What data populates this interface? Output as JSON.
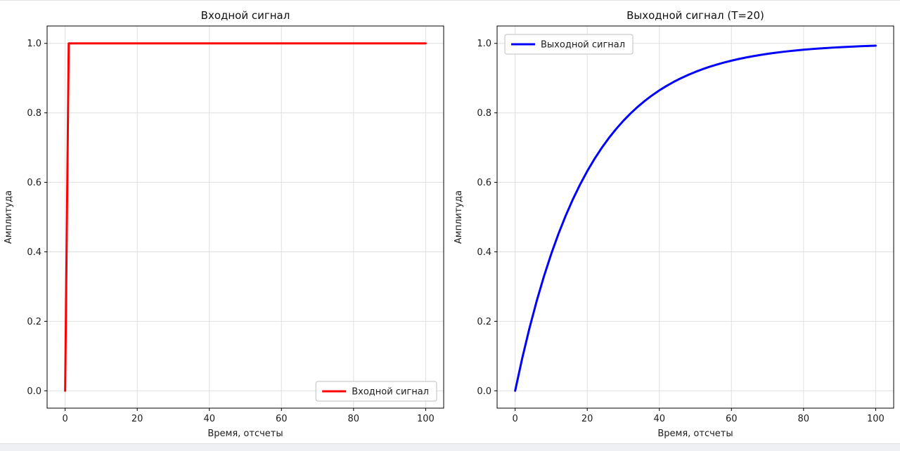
{
  "window": {
    "background": "#ffffff",
    "bottom_strip_color": "#eef0f3"
  },
  "chart_data": [
    {
      "type": "line",
      "title": "Входной сигнал",
      "xlabel": "Время, отсчеты",
      "ylabel": "Амплитуда",
      "xlim": [
        -5,
        105
      ],
      "ylim": [
        -0.05,
        1.05
      ],
      "xticks": [
        0,
        20,
        40,
        60,
        80,
        100
      ],
      "xtick_labels": [
        "0",
        "20",
        "40",
        "60",
        "80",
        "100"
      ],
      "yticks": [
        0.0,
        0.2,
        0.4,
        0.6,
        0.8,
        1.0
      ],
      "ytick_labels": [
        "0.0",
        "0.2",
        "0.4",
        "0.6",
        "0.8",
        "1.0"
      ],
      "grid": true,
      "grid_color": "#e0e0e0",
      "legend": {
        "label": "Входной сигнал",
        "position": "lower right"
      },
      "series": [
        {
          "name": "Входной сигнал",
          "color": "#ff0000",
          "x": [
            0,
            1,
            100
          ],
          "y": [
            0,
            1,
            1
          ]
        }
      ]
    },
    {
      "type": "line",
      "title": "Выходной сигнал (T=20)",
      "xlabel": "Время, отсчеты",
      "ylabel": "Амплитуда",
      "xlim": [
        -5,
        105
      ],
      "ylim": [
        -0.05,
        1.05
      ],
      "xticks": [
        0,
        20,
        40,
        60,
        80,
        100
      ],
      "xtick_labels": [
        "0",
        "20",
        "40",
        "60",
        "80",
        "100"
      ],
      "yticks": [
        0.0,
        0.2,
        0.4,
        0.6,
        0.8,
        1.0
      ],
      "ytick_labels": [
        "0.0",
        "0.2",
        "0.4",
        "0.6",
        "0.8",
        "1.0"
      ],
      "grid": true,
      "grid_color": "#e0e0e0",
      "legend": {
        "label": "Выходной сигнал",
        "position": "upper left"
      },
      "series": [
        {
          "name": "Выходной сигнал",
          "color": "#0000ff",
          "x": [
            0,
            2,
            4,
            6,
            8,
            10,
            12,
            14,
            16,
            18,
            20,
            22,
            24,
            26,
            28,
            30,
            32,
            34,
            36,
            38,
            40,
            42,
            44,
            46,
            48,
            50,
            52,
            54,
            56,
            58,
            60,
            62,
            64,
            66,
            68,
            70,
            72,
            74,
            76,
            78,
            80,
            82,
            84,
            86,
            88,
            90,
            92,
            94,
            96,
            98,
            100
          ],
          "y": [
            0,
            0.0952,
            0.1813,
            0.2592,
            0.3297,
            0.3935,
            0.4512,
            0.5034,
            0.5507,
            0.5934,
            0.6321,
            0.6671,
            0.6988,
            0.7275,
            0.7534,
            0.7769,
            0.7981,
            0.8173,
            0.8347,
            0.8504,
            0.8647,
            0.8775,
            0.8892,
            0.8997,
            0.9093,
            0.9179,
            0.9257,
            0.9328,
            0.9392,
            0.945,
            0.9502,
            0.955,
            0.9592,
            0.9631,
            0.9666,
            0.9698,
            0.9727,
            0.9753,
            0.9776,
            0.9798,
            0.9817,
            0.9834,
            0.985,
            0.9864,
            0.9877,
            0.9889,
            0.9899,
            0.9909,
            0.9918,
            0.9926,
            0.9933
          ]
        }
      ]
    }
  ]
}
